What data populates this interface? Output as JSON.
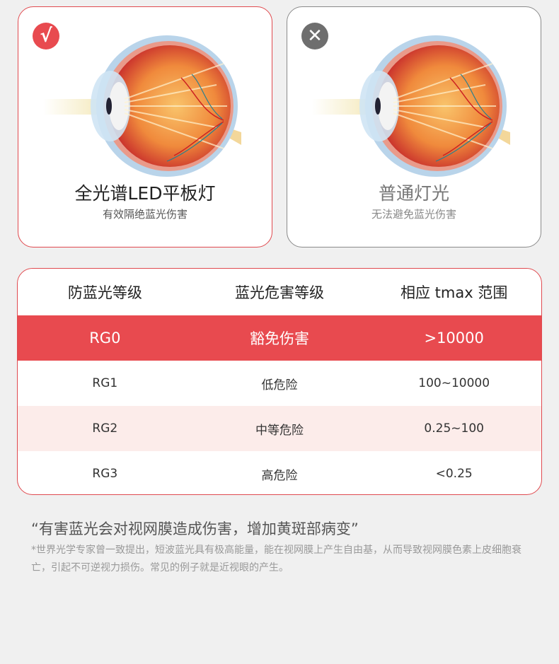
{
  "cards": [
    {
      "status": "check-icon",
      "glyph": "√",
      "title": "全光谱LED平板灯",
      "subtitle": "有效隔绝蓝光伤害"
    },
    {
      "status": "x-icon",
      "glyph": "✕",
      "title": "普通灯光",
      "subtitle": "无法避免蓝光伤害"
    }
  ],
  "table": {
    "headers": [
      "防蓝光等级",
      "蓝光危害等级",
      "相应 tmax 范围"
    ],
    "rows": [
      [
        "RG0",
        "豁免伤害",
        ">10000"
      ],
      [
        "RG1",
        "低危险",
        "100~10000"
      ],
      [
        "RG2",
        "中等危险",
        "0.25~100"
      ],
      [
        "RG3",
        "高危险",
        "<0.25"
      ]
    ]
  },
  "quote": "“有害蓝光会对视网膜造成伤害，增加黄斑部病变”",
  "note": "*世界光学专家曾一致提出，短波蓝光具有极高能量，能在视网膜上产生自由基，从而导致视网膜色素上皮细胞衰亡，引起不可逆视力损伤。常见的例子就是近视眼的产生。",
  "colors": {
    "accent": "#e84a4f",
    "pink_row": "#fcecea",
    "gray": "#6e6e6e"
  }
}
